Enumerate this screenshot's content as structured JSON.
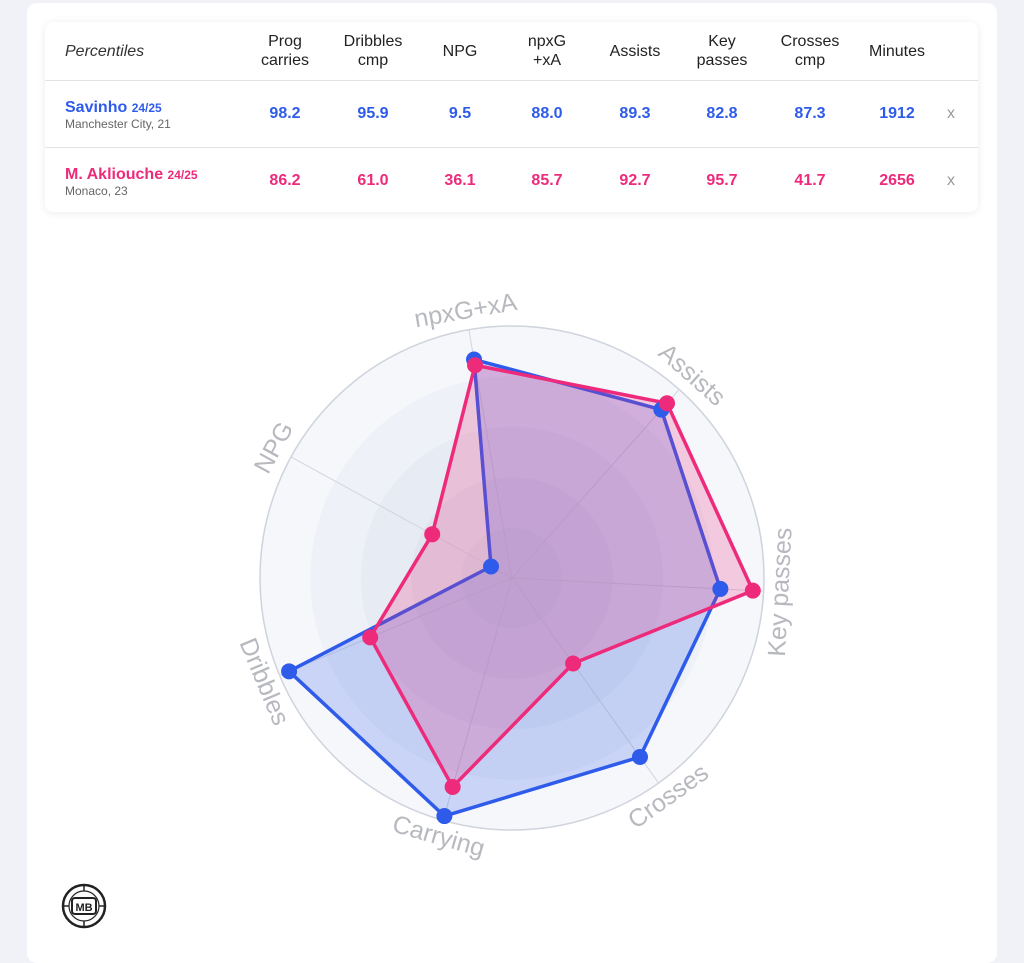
{
  "table": {
    "corner_label": "Percentiles",
    "columns": [
      {
        "label1": "Prog",
        "label2": "carries"
      },
      {
        "label1": "Dribbles",
        "label2": "cmp"
      },
      {
        "label1": "NPG",
        "label2": ""
      },
      {
        "label1": "npxG",
        "label2": "+xA"
      },
      {
        "label1": "Assists",
        "label2": ""
      },
      {
        "label1": "Key",
        "label2": "passes"
      },
      {
        "label1": "Crosses",
        "label2": "cmp"
      },
      {
        "label1": "Minutes",
        "label2": ""
      }
    ],
    "players": [
      {
        "name": "Savinho",
        "season": "24/25",
        "sub": "Manchester City, 21",
        "color": "#2f5bea",
        "values": [
          "98.2",
          "95.9",
          "9.5",
          "88.0",
          "89.3",
          "82.8",
          "87.3",
          "1912"
        ],
        "remove_label": "x"
      },
      {
        "name": "M. Akliouche",
        "season": "24/25",
        "sub": "Monaco, 23",
        "color": "#ee2a7b",
        "values": [
          "86.2",
          "61.0",
          "36.1",
          "85.7",
          "92.7",
          "95.7",
          "41.7",
          "2656"
        ],
        "remove_label": "x"
      }
    ]
  },
  "chart_data": {
    "type": "radar",
    "axes": [
      "Key passes",
      "Crosses",
      "Carrying",
      "Dribbles",
      "NPG",
      "npxG+xA",
      "Assists"
    ],
    "range": [
      0,
      100
    ],
    "series": [
      {
        "name": "Savinho",
        "color": "#2f5bea",
        "values": [
          82.8,
          87.3,
          98.2,
          95.9,
          9.5,
          88.0,
          89.3
        ]
      },
      {
        "name": "M. Akliouche",
        "color": "#ee2a7b",
        "values": [
          95.7,
          41.7,
          86.2,
          61.0,
          36.1,
          85.7,
          92.7
        ]
      }
    ]
  },
  "logo": {
    "text": "MB"
  }
}
